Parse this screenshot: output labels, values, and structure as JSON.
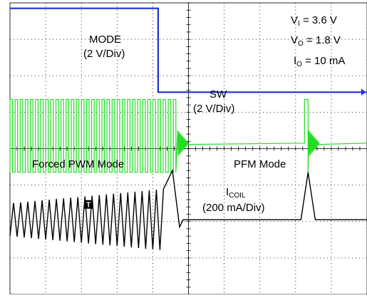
{
  "chart_data": {
    "type": "line",
    "title": "",
    "grid": true,
    "x_divisions": 10,
    "y_divisions": 8,
    "conditions": [
      {
        "sym": "V",
        "sub": "I",
        "rest": " = 3.6 V"
      },
      {
        "sym": "V",
        "sub": "O",
        "rest": " = 1.8 V"
      },
      {
        "sym": "I",
        "sub": "O",
        "rest": " = 10 mA"
      }
    ],
    "series": [
      {
        "name": "MODE",
        "scale": "(2 V/Div)",
        "color": "#1f2fd8",
        "shape": "step",
        "x_div": [
          0.0,
          4.15,
          4.15,
          10.0
        ],
        "y_div": [
          7.85,
          7.85,
          5.55,
          5.55
        ]
      },
      {
        "name": "SW",
        "scale": "(2 V/Div)",
        "color": "#22dd22",
        "shape": "switching",
        "pwm_until_div": 4.7,
        "pfm_burst_at_div": 8.35,
        "high_div": 5.35,
        "low_div": 3.35,
        "idle_div": 4.15,
        "cycles_div": 0.143
      },
      {
        "name": "I",
        "name_sub": "COIL",
        "scale": "(200 mA/Div)",
        "color": "#000000",
        "shape": "triangle",
        "center_div": 2.05,
        "ripple_start_div": 0.45,
        "ripple_end_div": 0.85,
        "last_peak_div": 3.4,
        "pfm_peak_div": 3.35,
        "pfm_peak_at_div": 8.35,
        "baseline_div": 2.05
      }
    ],
    "annotations": {
      "mode_label": "MODE",
      "mode_scale": "(2 V/Div)",
      "sw_label": "SW",
      "sw_scale": "(2 V/Div)",
      "coil_label": "I",
      "coil_sub": "COIL",
      "coil_scale": "(200 mA/Div)",
      "pwm_label": "Forced PWM Mode",
      "pfm_label": "PFM Mode",
      "trigger_marker": "T"
    }
  }
}
